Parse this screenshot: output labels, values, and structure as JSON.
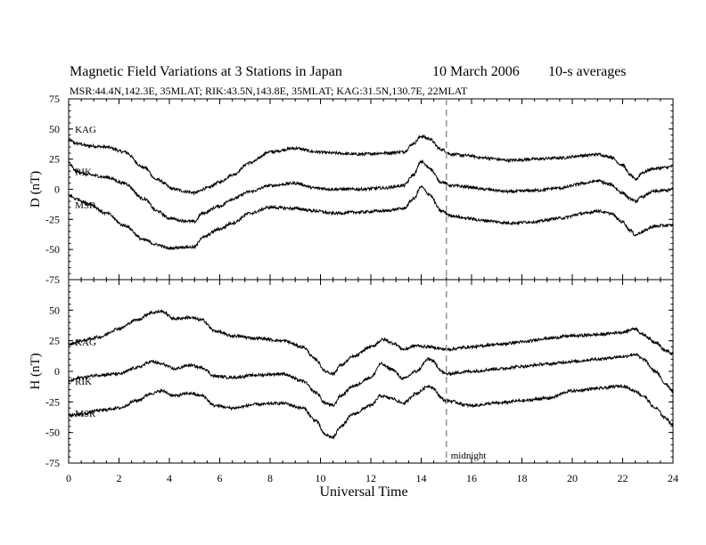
{
  "header": {
    "title": "Magnetic Field Variations at 3 Stations in Japan",
    "date": "10 March   2006",
    "averaging": "10-s averages",
    "stations_line": "MSR:44.4N,142.3E, 35MLAT;   RIK:43.5N,143.8E, 35MLAT;   KAG:31.5N,130.7E, 22MLAT"
  },
  "chart_data": [
    {
      "type": "line",
      "panel": "top",
      "ylabel": "D (nT)",
      "xlabel": "",
      "ylim": [
        -75,
        75
      ],
      "yticks": [
        -75,
        -50,
        -25,
        0,
        25,
        50,
        75
      ],
      "ytick_labels": [
        "-75",
        "-50",
        "-25",
        "0",
        "25",
        "50",
        "75"
      ],
      "xlim": [
        0,
        24
      ],
      "series": [
        {
          "name": "KAG",
          "x": [
            0,
            0.3,
            0.8,
            1.5,
            2.2,
            3.0,
            3.5,
            4.2,
            4.7,
            5.0,
            5.5,
            6.0,
            6.5,
            7.2,
            8.0,
            9.0,
            9.8,
            10.5,
            11.5,
            12.5,
            13.3,
            13.7,
            14.0,
            14.3,
            14.8,
            15.2,
            15.8,
            16.5,
            17.5,
            18.5,
            19.5,
            20.5,
            21.0,
            21.5,
            22.0,
            22.3,
            22.5,
            22.8,
            23.2,
            23.7,
            24.0
          ],
          "y": [
            41,
            38,
            36,
            35,
            31,
            18,
            8,
            0,
            -2,
            -3,
            1,
            6,
            12,
            22,
            31,
            34,
            31,
            30,
            29,
            30,
            31,
            38,
            44,
            42,
            33,
            29,
            28,
            26,
            24,
            25,
            26,
            28,
            29,
            27,
            20,
            12,
            8,
            14,
            17,
            18,
            19
          ]
        },
        {
          "name": "RIK",
          "x": [
            0,
            0.3,
            0.8,
            1.5,
            2.2,
            3.0,
            3.5,
            4.0,
            4.5,
            5.0,
            5.3,
            6.0,
            6.5,
            7.2,
            8.0,
            9.0,
            9.8,
            10.5,
            11.5,
            12.5,
            13.3,
            13.7,
            14.0,
            14.3,
            14.8,
            15.2,
            15.8,
            16.5,
            17.5,
            18.5,
            19.5,
            20.5,
            21.0,
            21.5,
            22.0,
            22.3,
            22.5,
            22.8,
            23.2,
            23.7,
            24.0
          ],
          "y": [
            22,
            15,
            12,
            10,
            5,
            -8,
            -18,
            -24,
            -26,
            -27,
            -20,
            -14,
            -8,
            -2,
            3,
            5,
            1,
            0,
            0,
            1,
            3,
            12,
            23,
            18,
            6,
            3,
            2,
            0,
            -2,
            -1,
            1,
            5,
            7,
            4,
            -3,
            -8,
            -10,
            -6,
            -2,
            -1,
            0
          ]
        },
        {
          "name": "MSR",
          "x": [
            0,
            0.3,
            0.8,
            1.5,
            2.2,
            3.0,
            3.5,
            4.0,
            4.5,
            5.0,
            5.3,
            6.0,
            6.5,
            7.2,
            8.0,
            9.0,
            9.8,
            10.5,
            11.5,
            12.5,
            13.3,
            13.7,
            14.0,
            14.3,
            14.8,
            15.2,
            15.8,
            16.5,
            17.5,
            18.5,
            19.5,
            20.5,
            21.0,
            21.5,
            22.0,
            22.3,
            22.5,
            22.8,
            23.2,
            23.7,
            24.0
          ],
          "y": [
            -5,
            -8,
            -12,
            -20,
            -30,
            -42,
            -46,
            -49,
            -48,
            -48,
            -40,
            -33,
            -28,
            -20,
            -15,
            -16,
            -18,
            -20,
            -19,
            -18,
            -16,
            -8,
            2,
            -4,
            -18,
            -22,
            -24,
            -26,
            -28,
            -27,
            -24,
            -20,
            -18,
            -20,
            -27,
            -34,
            -38,
            -35,
            -31,
            -30,
            -30
          ]
        }
      ],
      "annotations": [
        {
          "text": "KAG"
        },
        {
          "text": "RIK"
        },
        {
          "text": "MSR"
        }
      ]
    },
    {
      "type": "line",
      "panel": "bottom",
      "ylabel": "H (nT)",
      "xlabel": "Universal Time",
      "ylim": [
        -75,
        75
      ],
      "yticks": [
        -75,
        -50,
        -25,
        0,
        25,
        50
      ],
      "ytick_labels": [
        "-75",
        "-50",
        "-25",
        "0",
        "25",
        "50"
      ],
      "xlim": [
        0,
        24
      ],
      "xticks": [
        0,
        2,
        4,
        6,
        8,
        10,
        12,
        14,
        16,
        18,
        20,
        22,
        24
      ],
      "xtick_labels": [
        "0",
        "2",
        "4",
        "6",
        "8",
        "10",
        "12",
        "14",
        "16",
        "18",
        "20",
        "22",
        "24"
      ],
      "series": [
        {
          "name": "KAG",
          "x": [
            0,
            0.5,
            1.2,
            2.0,
            2.7,
            3.3,
            3.7,
            4.2,
            4.8,
            5.3,
            5.8,
            6.5,
            7.5,
            8.5,
            9.3,
            9.8,
            10.2,
            10.5,
            10.8,
            11.3,
            12.0,
            12.5,
            12.9,
            13.3,
            13.8,
            14.3,
            15.0,
            16.0,
            17.0,
            18.0,
            19.0,
            20.0,
            21.0,
            22.0,
            22.5,
            22.8,
            23.3,
            23.7,
            24.0
          ],
          "y": [
            22,
            25,
            28,
            35,
            42,
            48,
            49,
            43,
            44,
            42,
            33,
            29,
            27,
            25,
            20,
            10,
            0,
            -2,
            5,
            12,
            20,
            26,
            23,
            18,
            21,
            20,
            18,
            20,
            22,
            24,
            27,
            29,
            30,
            32,
            35,
            30,
            24,
            17,
            14
          ]
        },
        {
          "name": "RIK",
          "x": [
            0,
            0.5,
            1.2,
            2.0,
            2.7,
            3.3,
            3.7,
            4.2,
            4.8,
            5.3,
            5.8,
            6.5,
            7.5,
            8.5,
            9.3,
            9.8,
            10.2,
            10.5,
            10.8,
            11.3,
            12.0,
            12.4,
            12.8,
            13.3,
            13.8,
            14.3,
            15.0,
            16.0,
            17.0,
            18.0,
            19.0,
            20.0,
            21.0,
            22.0,
            22.5,
            22.8,
            23.3,
            23.7,
            24.0
          ],
          "y": [
            -8,
            -5,
            -3,
            -2,
            3,
            8,
            6,
            2,
            5,
            3,
            -4,
            -5,
            -3,
            -2,
            -8,
            -17,
            -26,
            -28,
            -20,
            -12,
            -5,
            6,
            2,
            -6,
            0,
            10,
            -2,
            0,
            2,
            4,
            6,
            8,
            10,
            12,
            14,
            10,
            0,
            -10,
            -16
          ]
        },
        {
          "name": "MSR",
          "x": [
            0,
            0.5,
            1.2,
            2.0,
            2.7,
            3.3,
            3.7,
            4.2,
            4.8,
            5.3,
            5.8,
            6.5,
            7.5,
            8.5,
            9.3,
            9.8,
            10.2,
            10.5,
            10.8,
            11.3,
            12.0,
            12.4,
            12.8,
            13.3,
            13.8,
            14.3,
            15.0,
            16.0,
            17.0,
            18.0,
            19.0,
            20.0,
            21.0,
            22.0,
            22.5,
            22.8,
            23.3,
            23.7,
            24.0
          ],
          "y": [
            -36,
            -35,
            -32,
            -30,
            -24,
            -18,
            -16,
            -20,
            -18,
            -20,
            -28,
            -30,
            -27,
            -26,
            -30,
            -40,
            -52,
            -54,
            -45,
            -35,
            -28,
            -20,
            -22,
            -26,
            -18,
            -12,
            -24,
            -28,
            -26,
            -24,
            -22,
            -16,
            -14,
            -12,
            -16,
            -20,
            -30,
            -38,
            -44
          ]
        }
      ],
      "annotations": [
        {
          "text": "KAG"
        },
        {
          "text": "RIK"
        },
        {
          "text": "MSR"
        },
        {
          "text": "midnight"
        }
      ]
    }
  ],
  "midnight_ut": 15,
  "colors": {
    "line": "#000000",
    "midnight_line": "#999999"
  }
}
